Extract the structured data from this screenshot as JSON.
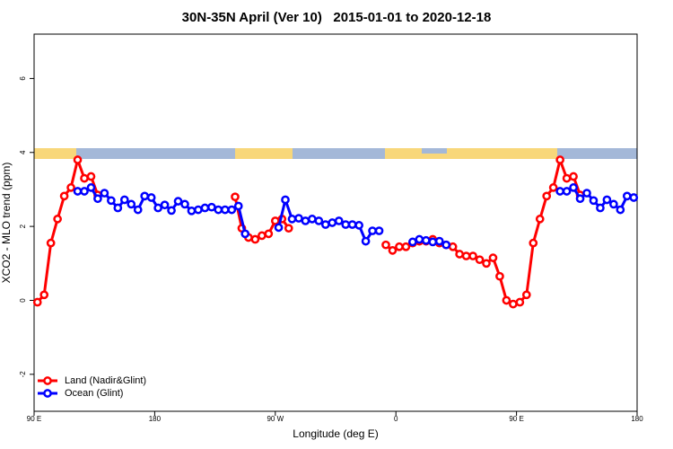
{
  "chart_data": {
    "type": "line",
    "title": "30N-35N April (Ver 10)   2015-01-01 to 2020-12-18",
    "x_label": "Longitude (deg E)",
    "y_label": "XCO2 - MLO trend (ppm)",
    "xlim": [
      90,
      540
    ],
    "ylim": [
      -3,
      7.2
    ],
    "xticks": [
      {
        "value": 90,
        "label": "90 E"
      },
      {
        "value": 180,
        "label": "180"
      },
      {
        "value": 270,
        "label": "90 W"
      },
      {
        "value": 360,
        "label": "0"
      },
      {
        "value": 450,
        "label": "90 E"
      },
      {
        "value": 540,
        "label": "180"
      }
    ],
    "yticks": [
      -2,
      0,
      2,
      4,
      6
    ],
    "legend": "bottomleft",
    "series": [
      {
        "name": "Land (Nadir&Glint)",
        "color": "#ff0000",
        "x": [
          92.5,
          97.5,
          102.5,
          107.5,
          112.5,
          117.5,
          122.5,
          127.5,
          132.5,
          137.5,
          142.5,
          240,
          245,
          250,
          255,
          260,
          265,
          270,
          275,
          280,
          285,
          352.5,
          357.5,
          362.5,
          367.5,
          372.5,
          377.5,
          382.5,
          387.5,
          392.5,
          397.5,
          402.5,
          407.5,
          412.5,
          417.5,
          422.5,
          427.5,
          432.5,
          437.5,
          442.5,
          447.5,
          452.5,
          457.5,
          462.5,
          467.5,
          472.5,
          477.5,
          482.5,
          487.5,
          492.5,
          497.5
        ],
        "values": [
          -0.05,
          0.15,
          1.55,
          2.2,
          2.82,
          3.05,
          3.8,
          3.3,
          3.35,
          2.85,
          null,
          2.8,
          1.95,
          1.7,
          1.65,
          1.75,
          1.8,
          2.15,
          2.2,
          1.95,
          null,
          1.5,
          1.35,
          1.45,
          1.45,
          1.55,
          1.6,
          1.6,
          1.65,
          1.55,
          1.5,
          1.45,
          1.25,
          1.2,
          1.2,
          1.1,
          1.0,
          1.15,
          0.65,
          0.0,
          -0.1,
          -0.05,
          0.15,
          1.55,
          2.2,
          2.82,
          3.05,
          3.8,
          3.3,
          3.35,
          2.85
        ]
      },
      {
        "name": "Ocean (Glint)",
        "color": "#0000ff",
        "x": [
          122.5,
          127.5,
          132.5,
          137.5,
          142.5,
          147.5,
          152.5,
          157.5,
          162.5,
          167.5,
          172.5,
          177.5,
          182.5,
          187.5,
          192.5,
          197.5,
          202.5,
          207.5,
          212.5,
          217.5,
          222.5,
          227.5,
          232.5,
          237.5,
          242.5,
          247.5,
          252.5,
          272.5,
          277.5,
          282.5,
          287.5,
          292.5,
          297.5,
          302.5,
          307.5,
          312.5,
          317.5,
          322.5,
          327.5,
          332.5,
          337.5,
          342.5,
          347.5,
          352.5,
          372.5,
          377.5,
          382.5,
          387.5,
          392.5,
          397.5,
          402.5,
          482.5,
          487.5,
          492.5,
          497.5,
          502.5,
          507.5,
          512.5,
          517.5,
          522.5,
          527.5,
          532.5,
          537.5
        ],
        "values": [
          2.95,
          2.95,
          3.05,
          2.75,
          2.9,
          2.7,
          2.5,
          2.72,
          2.6,
          2.45,
          2.82,
          2.78,
          2.5,
          2.58,
          2.43,
          2.68,
          2.6,
          2.42,
          2.45,
          2.5,
          2.52,
          2.45,
          2.45,
          2.45,
          2.55,
          1.8,
          null,
          1.97,
          2.72,
          2.2,
          2.22,
          2.15,
          2.2,
          2.15,
          2.05,
          2.1,
          2.15,
          2.05,
          2.05,
          2.03,
          1.6,
          1.88,
          1.88,
          null,
          1.58,
          1.65,
          1.62,
          1.58,
          1.6,
          1.5,
          null,
          2.95,
          2.95,
          3.05,
          2.75,
          2.9,
          2.7,
          2.5,
          2.72,
          2.6,
          2.45,
          2.82,
          2.78
        ]
      }
    ]
  }
}
